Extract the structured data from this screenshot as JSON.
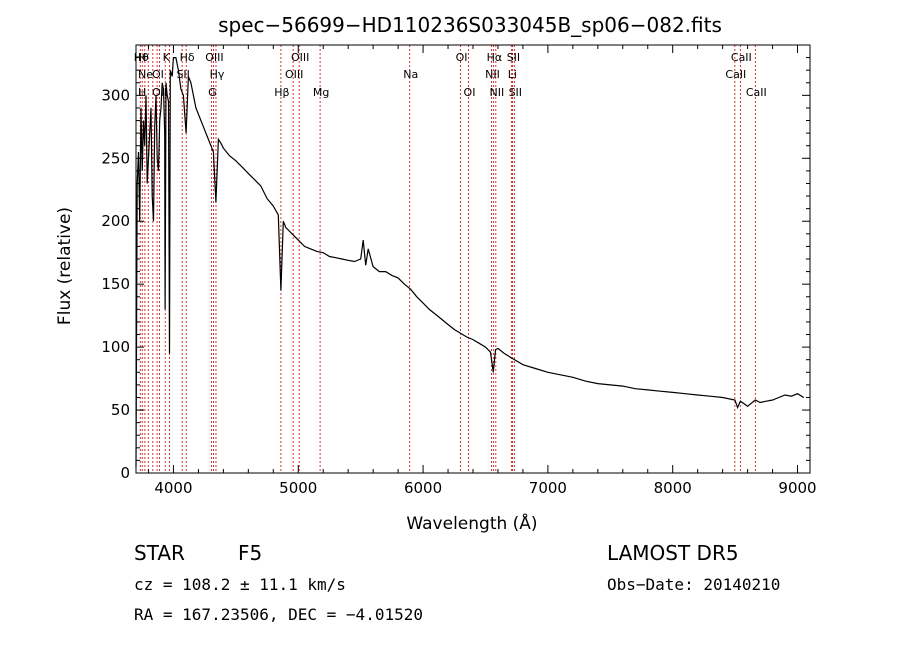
{
  "chart_data": {
    "type": "line",
    "title": "spec−56699−HD110236S033045B_sp06−082.fits",
    "xlabel": "Wavelength (Å)",
    "ylabel": "Flux (relative)",
    "xlim": [
      3700,
      9100
    ],
    "ylim": [
      0,
      340
    ],
    "xticks": [
      4000,
      5000,
      6000,
      7000,
      8000,
      9000
    ],
    "yticks": [
      0,
      50,
      100,
      150,
      200,
      250,
      300
    ],
    "grid": false,
    "series": [
      {
        "x": [
          3700,
          3710,
          3720,
          3730,
          3740,
          3750,
          3760,
          3770,
          3780,
          3790,
          3800,
          3810,
          3820,
          3830,
          3840,
          3850,
          3860,
          3870,
          3880,
          3890,
          3900,
          3910,
          3920,
          3930,
          3933,
          3940,
          3950,
          3960,
          3968,
          3975,
          3990,
          4000,
          4020,
          4040,
          4060,
          4080,
          4101,
          4120,
          4140,
          4160,
          4180,
          4200,
          4220,
          4240,
          4260,
          4280,
          4300,
          4320,
          4340,
          4360,
          4380,
          4400,
          4450,
          4500,
          4550,
          4600,
          4650,
          4700,
          4750,
          4800,
          4840,
          4861,
          4880,
          4900,
          4920,
          4950,
          5000,
          5050,
          5100,
          5150,
          5200,
          5250,
          5300,
          5350,
          5400,
          5450,
          5500,
          5520,
          5540,
          5560,
          5600,
          5650,
          5700,
          5750,
          5800,
          5850,
          5900,
          5950,
          6000,
          6050,
          6100,
          6150,
          6200,
          6250,
          6300,
          6350,
          6400,
          6450,
          6500,
          6540,
          6563,
          6580,
          6600,
          6650,
          6700,
          6750,
          6800,
          6900,
          7000,
          7100,
          7200,
          7300,
          7400,
          7500,
          7600,
          7700,
          7800,
          7900,
          8000,
          8100,
          8200,
          8300,
          8400,
          8498,
          8520,
          8542,
          8600,
          8662,
          8700,
          8750,
          8800,
          8850,
          8900,
          8950,
          9000,
          9050
        ],
        "y": [
          5,
          230,
          255,
          200,
          290,
          240,
          280,
          260,
          300,
          230,
          250,
          270,
          290,
          220,
          200,
          275,
          300,
          250,
          240,
          280,
          290,
          310,
          305,
          270,
          130,
          310,
          300,
          295,
          95,
          320,
          315,
          330,
          330,
          320,
          305,
          300,
          270,
          315,
          310,
          300,
          290,
          285,
          280,
          275,
          270,
          265,
          260,
          255,
          215,
          265,
          262,
          258,
          252,
          248,
          243,
          238,
          233,
          228,
          218,
          212,
          205,
          145,
          200,
          195,
          193,
          190,
          185,
          180,
          178,
          176,
          175,
          172,
          171,
          170,
          169,
          168,
          170,
          185,
          165,
          178,
          164,
          160,
          160,
          157,
          155,
          150,
          146,
          140,
          135,
          130,
          126,
          122,
          118,
          114,
          111,
          108,
          106,
          103,
          100,
          96,
          80,
          98,
          99,
          95,
          92,
          89,
          86,
          83,
          80,
          78,
          76,
          73,
          71,
          70,
          69,
          67,
          66,
          65,
          64,
          63,
          62,
          61,
          60,
          58,
          52,
          57,
          53,
          58,
          56,
          57,
          58,
          60,
          62,
          61,
          63,
          60
        ]
      }
    ],
    "line_markers": [
      {
        "x": 3734,
        "label": "Hθ",
        "row": 0
      },
      {
        "x": 3750,
        "label": "",
        "row": 0
      },
      {
        "x": 3771,
        "label": "",
        "row": 0
      },
      {
        "x": 3798,
        "label": "",
        "row": 0
      },
      {
        "x": 3835,
        "label": "",
        "row": 0
      },
      {
        "x": 3869,
        "label": "",
        "row": 0
      },
      {
        "x": 3889,
        "label": "",
        "row": 0
      },
      {
        "x": 3934,
        "label": "K",
        "row": 0
      },
      {
        "x": 3969,
        "label": "",
        "row": 0
      },
      {
        "x": 4102,
        "label": "Hδ",
        "row": 0
      },
      {
        "x": 4070,
        "label": "SII",
        "row": 1
      },
      {
        "x": 4320,
        "label": "OIII",
        "row": 0
      },
      {
        "x": 4304,
        "label": "G",
        "row": 2
      },
      {
        "x": 4341,
        "label": "Hγ",
        "row": 1
      },
      {
        "x": 4861,
        "label": "Hβ",
        "row": 2
      },
      {
        "x": 4959,
        "label": "OIII",
        "row": 1
      },
      {
        "x": 5007,
        "label": "OIII",
        "row": 0
      },
      {
        "x": 5175,
        "label": "Mg",
        "row": 2
      },
      {
        "x": 5893,
        "label": "Na",
        "row": 1
      },
      {
        "x": 6300,
        "label": "OI",
        "row": 0
      },
      {
        "x": 6364,
        "label": "OI",
        "row": 2
      },
      {
        "x": 6548,
        "label": "NII",
        "row": 1
      },
      {
        "x": 6563,
        "label": "Hα",
        "row": 0
      },
      {
        "x": 6583,
        "label": "NII",
        "row": 2
      },
      {
        "x": 6707,
        "label": "Li",
        "row": 1
      },
      {
        "x": 6716,
        "label": "SII",
        "row": 0
      },
      {
        "x": 6731,
        "label": "SII",
        "row": 2
      },
      {
        "x": 8498,
        "label": "CaII",
        "row": 1
      },
      {
        "x": 8542,
        "label": "CaII",
        "row": 0
      },
      {
        "x": 8662,
        "label": "CaII",
        "row": 2
      }
    ],
    "left_edge_labels": [
      {
        "label": "H",
        "row": 0
      },
      {
        "label": "OI",
        "row": 1
      },
      {
        "label": "Ne",
        "row": 1
      },
      {
        "label": "OII",
        "row": 2
      },
      {
        "label": "H",
        "row": 2
      }
    ]
  },
  "footer": {
    "class_label": "STAR",
    "subclass": "F5",
    "survey": "LAMOST DR5",
    "cz_text": "cz = 108.2 ± 11.1 km/s",
    "obs_date": "Obs−Date: 20140210",
    "radec": "RA = 167.23506, DEC =  −4.01520"
  },
  "colors": {
    "marker_line": "#cc0000",
    "spectrum": "#000000",
    "background": "#ffffff"
  }
}
